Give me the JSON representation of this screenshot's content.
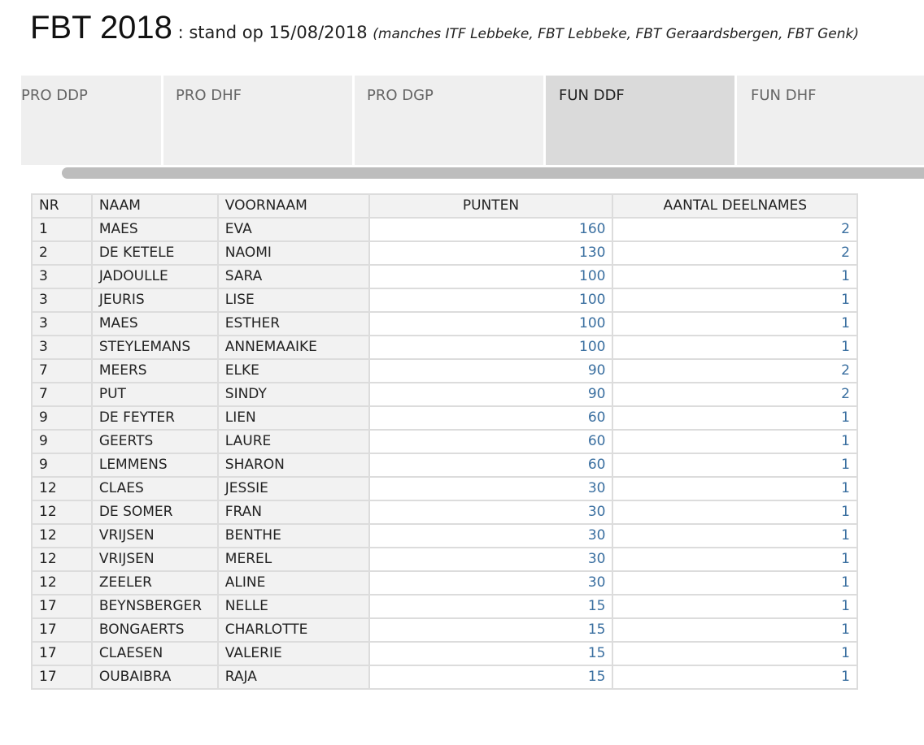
{
  "header": {
    "title": "FBT 2018",
    "subtitle": " : stand op 15/08/2018 ",
    "note": "(manches ITF Lebbeke, FBT Lebbeke, FBT Geraardsbergen, FBT Genk)"
  },
  "tabs": [
    {
      "label": "PRO DDP",
      "active": false
    },
    {
      "label": "PRO DHF",
      "active": false
    },
    {
      "label": "PRO DGP",
      "active": false
    },
    {
      "label": "FUN DDF",
      "active": true
    },
    {
      "label": "FUN DHF",
      "active": false
    }
  ],
  "table": {
    "headers": {
      "nr": "NR",
      "naam": "NAAM",
      "voornaam": "VOORNAAM",
      "punten": "PUNTEN",
      "deelnames": "AANTAL DEELNAMES"
    },
    "rows": [
      {
        "nr": "1",
        "naam": "MAES",
        "voornaam": "EVA",
        "punten": "160",
        "deelnames": "2"
      },
      {
        "nr": "2",
        "naam": "DE KETELE",
        "voornaam": "NAOMI",
        "punten": "130",
        "deelnames": "2"
      },
      {
        "nr": "3",
        "naam": "JADOULLE",
        "voornaam": "SARA",
        "punten": "100",
        "deelnames": "1"
      },
      {
        "nr": "3",
        "naam": "JEURIS",
        "voornaam": "LISE",
        "punten": "100",
        "deelnames": "1"
      },
      {
        "nr": "3",
        "naam": "MAES",
        "voornaam": "ESTHER",
        "punten": "100",
        "deelnames": "1"
      },
      {
        "nr": "3",
        "naam": "STEYLEMANS",
        "voornaam": "ANNEMAAIKE",
        "punten": "100",
        "deelnames": "1"
      },
      {
        "nr": "7",
        "naam": "MEERS",
        "voornaam": "ELKE",
        "punten": "90",
        "deelnames": "2"
      },
      {
        "nr": "7",
        "naam": "PUT",
        "voornaam": "SINDY",
        "punten": "90",
        "deelnames": "2"
      },
      {
        "nr": "9",
        "naam": "DE FEYTER",
        "voornaam": "LIEN",
        "punten": "60",
        "deelnames": "1"
      },
      {
        "nr": "9",
        "naam": "GEERTS",
        "voornaam": "LAURE",
        "punten": "60",
        "deelnames": "1"
      },
      {
        "nr": "9",
        "naam": "LEMMENS",
        "voornaam": "SHARON",
        "punten": "60",
        "deelnames": "1"
      },
      {
        "nr": "12",
        "naam": "CLAES",
        "voornaam": "JESSIE",
        "punten": "30",
        "deelnames": "1"
      },
      {
        "nr": "12",
        "naam": "DE SOMER",
        "voornaam": "FRAN",
        "punten": "30",
        "deelnames": "1"
      },
      {
        "nr": "12",
        "naam": "VRIJSEN",
        "voornaam": "BENTHE",
        "punten": "30",
        "deelnames": "1"
      },
      {
        "nr": "12",
        "naam": "VRIJSEN",
        "voornaam": "MEREL",
        "punten": "30",
        "deelnames": "1"
      },
      {
        "nr": "12",
        "naam": "ZEELER",
        "voornaam": "ALINE",
        "punten": "30",
        "deelnames": "1"
      },
      {
        "nr": "17",
        "naam": "BEYNSBERGER",
        "voornaam": "NELLE",
        "punten": "15",
        "deelnames": "1"
      },
      {
        "nr": "17",
        "naam": "BONGAERTS",
        "voornaam": "CHARLOTTE",
        "punten": "15",
        "deelnames": "1"
      },
      {
        "nr": "17",
        "naam": "CLAESEN",
        "voornaam": "VALERIE",
        "punten": "15",
        "deelnames": "1"
      },
      {
        "nr": "17",
        "naam": "OUBAIBRA",
        "voornaam": "RAJA",
        "punten": "15",
        "deelnames": "1"
      }
    ]
  }
}
